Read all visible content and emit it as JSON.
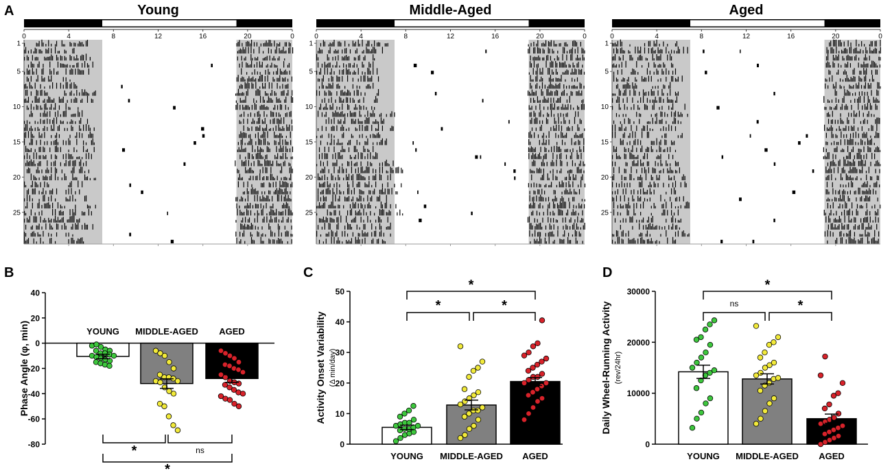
{
  "panel_labels": {
    "a": "A",
    "b": "B",
    "c": "C",
    "d": "D"
  },
  "chart_data": [
    {
      "type": "actogram",
      "panel": "A",
      "titles": [
        "Young",
        "Middle-Aged",
        "Aged"
      ],
      "x_ticks": [
        "0",
        "4",
        "8",
        "12",
        "16",
        "20",
        "0"
      ],
      "y_ticks": [
        "1",
        "5",
        "10",
        "15",
        "20",
        "25"
      ],
      "light_cycle_hours": {
        "lights_on": 7,
        "lights_off": 19
      },
      "num_days": 29
    },
    {
      "type": "bar",
      "panel": "B",
      "ylabel": "Phase Angle (φ, min)",
      "ylim": [
        -80,
        40
      ],
      "y_ticks": [
        "40",
        "20",
        "0",
        "-20",
        "-40",
        "-60",
        "-80"
      ],
      "categories": [
        "YOUNG",
        "MIDDLE-AGED",
        "AGED"
      ],
      "means": [
        -10.5,
        -32,
        -28
      ],
      "sem": [
        1.8,
        3.8,
        3
      ],
      "fill_colors": [
        "#ffffff",
        "#808080",
        "#000000"
      ],
      "point_colors": [
        "#3dc73d",
        "#f2ea3a",
        "#d8222a"
      ],
      "points": [
        [
          -2,
          -1,
          -3,
          -5,
          -6,
          -6,
          -8,
          -8,
          -9,
          -10,
          -10,
          -11,
          -12,
          -13,
          -14,
          -15,
          -16,
          -17,
          -18
        ],
        [
          -6,
          -8,
          -10,
          -15,
          -20,
          -25,
          -27,
          -27,
          -28,
          -30,
          -30,
          -31,
          -35,
          -38,
          -40,
          -48,
          -50,
          -58,
          -65,
          -69
        ],
        [
          -6,
          -8,
          -10,
          -12,
          -15,
          -17,
          -18,
          -20,
          -21,
          -23,
          -25,
          -27,
          -30,
          -31,
          -32,
          -33,
          -35,
          -37,
          -39,
          -40,
          -42,
          -44,
          -45,
          -48,
          -50
        ]
      ],
      "significance": [
        {
          "between": [
            0,
            1
          ],
          "label": "*"
        },
        {
          "between": [
            1,
            2
          ],
          "label": "ns"
        },
        {
          "between": [
            0,
            2
          ],
          "label": "*"
        }
      ]
    },
    {
      "type": "bar",
      "panel": "C",
      "ylabel": "Activity Onset Variability",
      "ylabel_sub": "(Δ min/day)",
      "ylim": [
        0,
        50
      ],
      "y_ticks": [
        "0",
        "10",
        "20",
        "30",
        "40",
        "50"
      ],
      "categories": [
        "YOUNG",
        "MIDDLE-AGED",
        "AGED"
      ],
      "means": [
        5.5,
        12.8,
        20.5
      ],
      "sem": [
        0.7,
        1.6,
        1.3
      ],
      "fill_colors": [
        "#ffffff",
        "#808080",
        "#000000"
      ],
      "point_colors": [
        "#3dc73d",
        "#f2ea3a",
        "#d8222a"
      ],
      "points": [
        [
          1,
          2,
          3,
          3.5,
          4,
          4.5,
          5,
          5,
          5.5,
          6,
          6,
          6.5,
          7,
          7,
          8,
          9,
          10,
          11,
          12.5
        ],
        [
          2,
          3,
          5,
          6,
          8,
          9,
          10,
          11,
          11,
          12,
          13,
          14,
          15,
          16,
          17,
          18,
          22,
          24,
          25,
          27,
          32
        ],
        [
          8,
          10,
          12,
          14,
          15,
          16,
          17,
          18,
          19,
          20,
          20,
          21,
          22,
          22,
          23,
          24,
          25,
          26,
          27,
          28,
          29,
          30,
          32,
          33,
          40.5
        ]
      ],
      "significance": [
        {
          "between": [
            0,
            1
          ],
          "label": "*"
        },
        {
          "between": [
            1,
            2
          ],
          "label": "*"
        },
        {
          "between": [
            0,
            2
          ],
          "label": "*"
        }
      ]
    },
    {
      "type": "bar",
      "panel": "D",
      "ylabel": "Daily Wheel-Running Activity",
      "ylabel_sub": "(rev/24hr)",
      "ylim": [
        0,
        30000
      ],
      "y_ticks": [
        "0",
        "10000",
        "20000",
        "30000"
      ],
      "categories": [
        "YOUNG",
        "MIDDLE-AGED",
        "AGED"
      ],
      "means": [
        14200,
        12800,
        5000
      ],
      "sem": [
        1300,
        1000,
        900
      ],
      "fill_colors": [
        "#ffffff",
        "#808080",
        "#000000"
      ],
      "point_colors": [
        "#3dc73d",
        "#f2ea3a",
        "#d8222a"
      ],
      "points": [
        [
          3200,
          5000,
          6200,
          8000,
          9000,
          11000,
          12500,
          13500,
          14000,
          14500,
          15000,
          16000,
          17000,
          18000,
          19500,
          20500,
          21000,
          22500,
          23500,
          24300
        ],
        [
          4000,
          5000,
          6500,
          8000,
          9000,
          10500,
          11500,
          12000,
          12800,
          13000,
          13500,
          14000,
          15000,
          15500,
          16000,
          17000,
          18000,
          19500,
          20000,
          21000,
          23200
        ],
        [
          0,
          400,
          800,
          1200,
          1600,
          2000,
          2400,
          2800,
          3200,
          3600,
          4000,
          4400,
          4800,
          5200,
          6000,
          7000,
          7800,
          9500,
          10000,
          12000,
          13500,
          17200
        ]
      ],
      "significance": [
        {
          "between": [
            0,
            1
          ],
          "label": "ns"
        },
        {
          "between": [
            1,
            2
          ],
          "label": "*"
        },
        {
          "between": [
            0,
            2
          ],
          "label": "*"
        }
      ]
    }
  ]
}
